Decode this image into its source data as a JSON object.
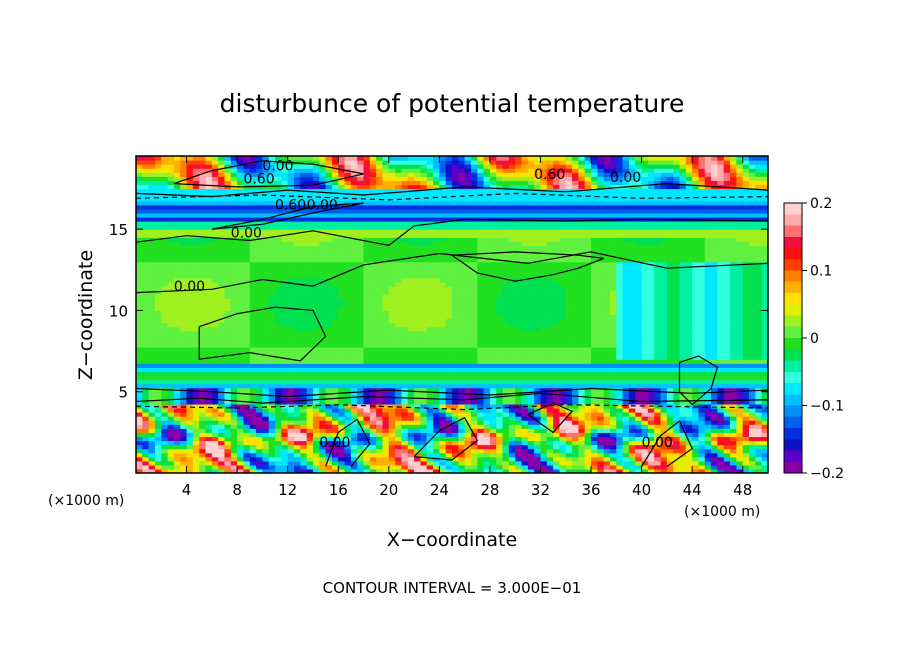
{
  "chart_data": {
    "type": "heatmap",
    "title": "disturbunce of potential temperature",
    "xlabel": "X−coordinate",
    "ylabel": "Z−coordinate",
    "x_unit_left": "(×1000 m)",
    "x_unit_right": "(×1000 m)",
    "xlim": [
      0,
      50
    ],
    "ylim": [
      0,
      19.5
    ],
    "x_ticks": [
      4,
      8,
      12,
      16,
      20,
      24,
      28,
      32,
      36,
      40,
      44,
      48
    ],
    "y_ticks": [
      5,
      10,
      15
    ],
    "colorbar": {
      "min": -0.2,
      "max": 0.2,
      "ticks": [
        0.2,
        0.1,
        0,
        -0.1,
        -0.2
      ],
      "tick_labels": [
        "0.2",
        "0.1",
        "0",
        "−0.1",
        "−0.2"
      ],
      "colors": [
        "#8800aa",
        "#5a00c8",
        "#1010c8",
        "#0030e0",
        "#0060f0",
        "#0090f8",
        "#00c0ff",
        "#00e8ff",
        "#30ffe0",
        "#00f0a0",
        "#00e050",
        "#20e020",
        "#60f040",
        "#a0f020",
        "#e0f000",
        "#ffe000",
        "#ffb000",
        "#ff8000",
        "#ff4000",
        "#ff1010",
        "#ee1040",
        "#ff7070",
        "#ffaaaa",
        "#ffd0d0"
      ]
    },
    "contour_labels": [
      {
        "text": "0.60",
        "x": 8.5,
        "z": 17.8
      },
      {
        "text": "0.60",
        "x": 31.5,
        "z": 18.1
      },
      {
        "text": "0.00",
        "x": 10.0,
        "z": 18.6
      },
      {
        "text": "0.60",
        "x": 11.0,
        "z": 16.2
      },
      {
        "text": "0.00",
        "x": 13.5,
        "z": 16.2
      },
      {
        "text": "0.00",
        "x": 7.5,
        "z": 14.5
      },
      {
        "text": "0.00",
        "x": 3.0,
        "z": 11.2
      },
      {
        "text": "0.00",
        "x": 37.5,
        "z": 17.9
      },
      {
        "text": "0.00",
        "x": 14.5,
        "z": 1.6
      },
      {
        "text": "0.00",
        "x": 40.0,
        "z": 1.6
      }
    ],
    "footer": "CONTOUR INTERVAL = 3.000E−01"
  }
}
